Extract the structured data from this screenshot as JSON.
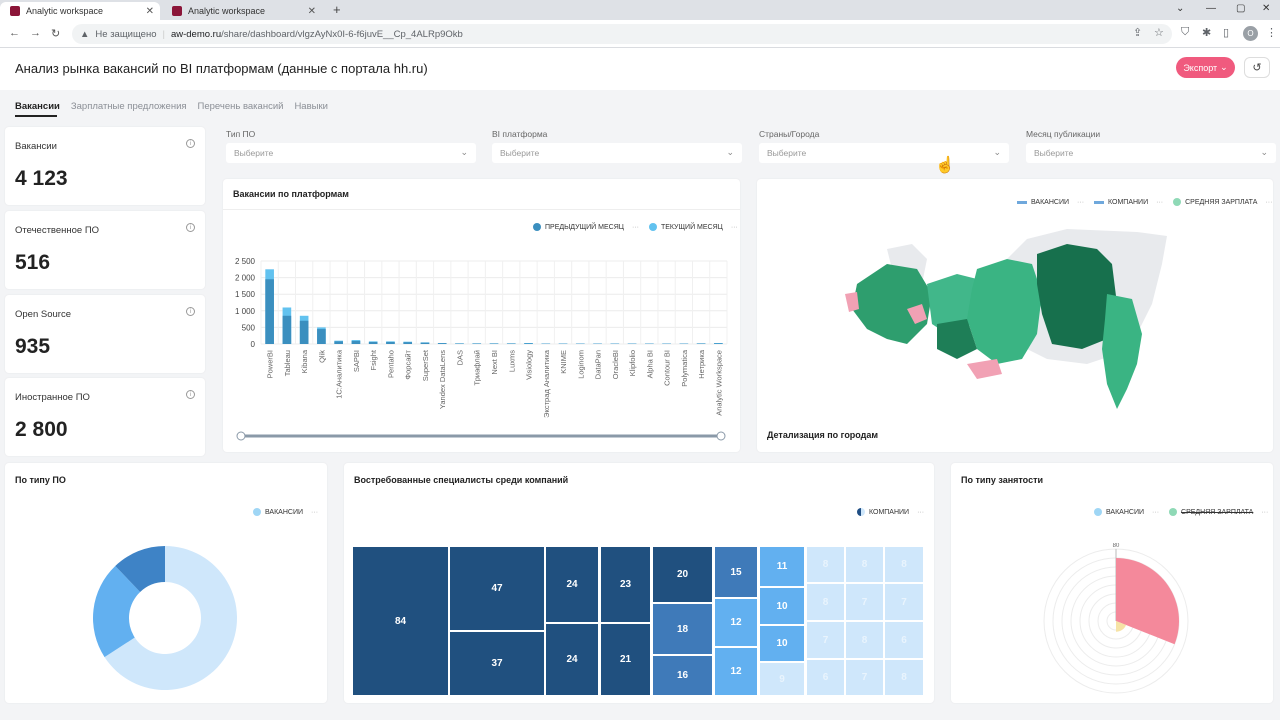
{
  "browser": {
    "tabs": [
      {
        "title": "Analytic workspace",
        "active": true
      },
      {
        "title": "Analytic workspace",
        "active": false
      }
    ],
    "new_tab": "+",
    "insecure_label": "Не защищено",
    "url_host": "aw-demo.ru",
    "url_path": "/share/dashboard/vlgzAyNx0I-6-f6juvE__Cp_4ALRp9Okb",
    "avatar_letter": "O"
  },
  "header": {
    "title": "Анализ рынка вакансий по BI платформам (данные с портала hh.ru)",
    "export_label": "Экспорт",
    "history_icon": "history-icon"
  },
  "tabs": [
    "Вакансии",
    "Зарплатные предложения",
    "Перечень вакансий",
    "Навыки"
  ],
  "kpis": [
    {
      "label": "Вакансии",
      "value": "4 123"
    },
    {
      "label": "Отечественное ПО",
      "value": "516"
    },
    {
      "label": "Open Source",
      "value": "935"
    },
    {
      "label": "Иностранное ПО",
      "value": "2 800"
    }
  ],
  "filters": [
    {
      "label": "Тип ПО",
      "placeholder": "Выберите"
    },
    {
      "label": "BI платформа",
      "placeholder": "Выберите"
    },
    {
      "label": "Страны/Города",
      "placeholder": "Выберите"
    },
    {
      "label": "Месяц публикации",
      "placeholder": "Выберите"
    }
  ],
  "bar_card": {
    "title": "Вакансии по платформам",
    "legend": [
      {
        "name": "ПРЕДЫДУЩИЙ МЕСЯЦ",
        "color": "#3b8fbf"
      },
      {
        "name": "ТЕКУЩИЙ МЕСЯЦ",
        "color": "#62c2ef"
      }
    ]
  },
  "map_card": {
    "legend": [
      {
        "name": "ВАКАНСИИ",
        "color": "#6fa8dc"
      },
      {
        "name": "КОМПАНИИ",
        "color": "#6fa8dc"
      },
      {
        "name": "СРЕДНЯЯ ЗАРПЛАТА",
        "color": "#8fd9b6"
      }
    ],
    "footer": "Детализация по городам"
  },
  "donut_card": {
    "title": "По типу ПО",
    "legend": [
      {
        "name": "ВАКАНСИИ",
        "color": "#9fd6f5"
      }
    ]
  },
  "treemap_card": {
    "title": "Востребованные специалисты среди компаний",
    "legend": [
      {
        "name": "КОМПАНИИ",
        "color": "#1f4e84"
      }
    ]
  },
  "polar_card": {
    "title": "По типу занятости",
    "legend": [
      {
        "name": "ВАКАНСИИ",
        "color": "#9fd6f5"
      },
      {
        "name": "СРЕДНЯЯ ЗАРПЛАТА",
        "color": "#8fd9b6"
      }
    ],
    "axis_top": "80"
  },
  "chart_data": [
    {
      "type": "bar",
      "title": "Вакансии по платформам",
      "categories": [
        "PowerBI",
        "Tableau",
        "Kibana",
        "Qlik",
        "1С:Аналитика",
        "SAPBI",
        "Fsight",
        "Pentaho",
        "Форсайт",
        "SuperSet",
        "Yandex DataLens",
        "DAS",
        "Триафлай",
        "Next BI",
        "Luxms",
        "Visiology",
        "Экстрад Аналитика",
        "KNIME",
        "Loginom",
        "DataPan",
        "OracleBI",
        "Klipfolio",
        "Alpha BI",
        "Contour BI",
        "Polymatica",
        "Нетрика",
        "Analytic Workspace"
      ],
      "series": [
        {
          "name": "ПРЕДЫДУЩИЙ МЕСЯЦ",
          "values": [
            1950,
            850,
            700,
            450,
            80,
            90,
            60,
            60,
            55,
            40,
            25,
            15,
            15,
            15,
            15,
            20,
            10,
            10,
            10,
            10,
            10,
            10,
            10,
            10,
            10,
            15,
            20
          ]
        },
        {
          "name": "ТЕКУЩИЙ МЕСЯЦ",
          "values": [
            2250,
            1100,
            850,
            500,
            100,
            120,
            80,
            80,
            70,
            50,
            30,
            20,
            20,
            20,
            20,
            30,
            15,
            15,
            15,
            15,
            15,
            15,
            15,
            15,
            15,
            20,
            30
          ]
        }
      ],
      "yticks": [
        "0",
        "500",
        "1 000",
        "1 500",
        "2 000",
        "2 500"
      ],
      "ylim": [
        0,
        2500
      ],
      "legend_placement": "top-right",
      "grid": true
    },
    {
      "type": "pie",
      "title": "По типу ПО",
      "series": [
        {
          "name": "ВАКАНСИИ",
          "values": [
            2800,
            935,
            516
          ]
        }
      ],
      "colors": [
        "#cfe7fb",
        "#62b0f0",
        "#3e83c6"
      ]
    },
    {
      "type": "heatmap",
      "title": "Востребованные специалисты среди компаний",
      "values": [
        84,
        47,
        37,
        24,
        24,
        23,
        21,
        20,
        18,
        16,
        15,
        12,
        12,
        11,
        10,
        10,
        9,
        8,
        8,
        8,
        8,
        7,
        7,
        7,
        8,
        6,
        6,
        6,
        6,
        7,
        8,
        5,
        6
      ]
    },
    {
      "type": "pie",
      "title": "По типу занятости",
      "series": [
        {
          "name": "ВАКАНСИИ",
          "values": [
            70,
            12
          ]
        },
        {
          "name": "СРЕДНЯЯ ЗАРПЛАТА",
          "values": []
        }
      ],
      "colors": [
        "#f4899b",
        "#f6e3a6"
      ],
      "axis_max": 80
    }
  ]
}
